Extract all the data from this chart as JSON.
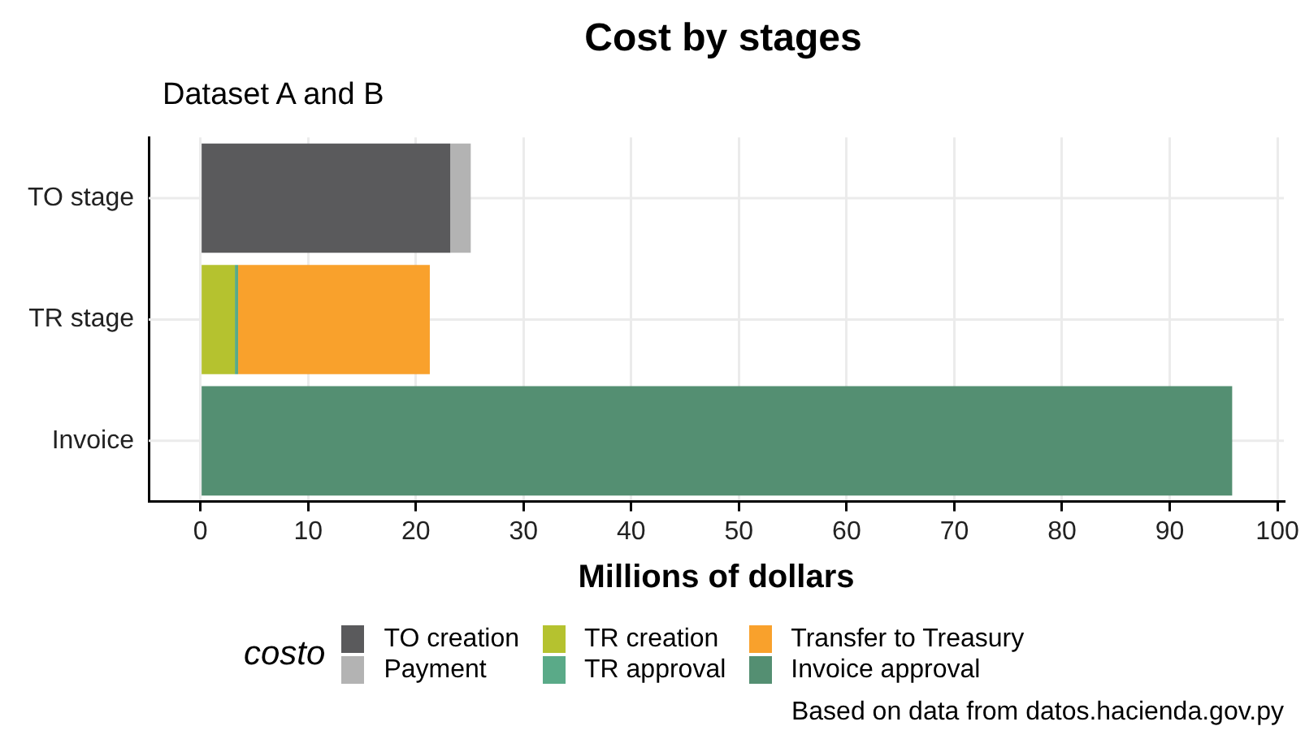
{
  "chart_data": {
    "type": "bar",
    "title": "Cost by stages",
    "subtitle": "Dataset A and B",
    "xlabel": "Millions of dollars",
    "legend_title": "costo",
    "orientation": "horizontal",
    "stacked": true,
    "categories": [
      "TO stage",
      "TR stage",
      "Invoice"
    ],
    "series": [
      {
        "name": "TO creation",
        "color": "#5a5a5c",
        "values": [
          23.2,
          null,
          null
        ]
      },
      {
        "name": "Payment",
        "color": "#b3b3b3",
        "values": [
          1.9,
          null,
          null
        ]
      },
      {
        "name": "TR creation",
        "color": "#b5c22f",
        "values": [
          null,
          3.2,
          null
        ]
      },
      {
        "name": "TR approval",
        "color": "#5aaa88",
        "values": [
          null,
          0.3,
          null
        ]
      },
      {
        "name": "Transfer to Treasury",
        "color": "#f9a12c",
        "values": [
          null,
          17.8,
          null
        ]
      },
      {
        "name": "Invoice approval",
        "color": "#548f72",
        "values": [
          null,
          null,
          95.8
        ]
      }
    ],
    "xlim": [
      -4.8,
      100.6
    ],
    "xticks": [
      0,
      10,
      20,
      30,
      40,
      50,
      60,
      70,
      80,
      90,
      100
    ],
    "grid": true,
    "legend": "bottom",
    "annotations": [
      "Based on data from datos.hacienda.gov.py"
    ]
  }
}
